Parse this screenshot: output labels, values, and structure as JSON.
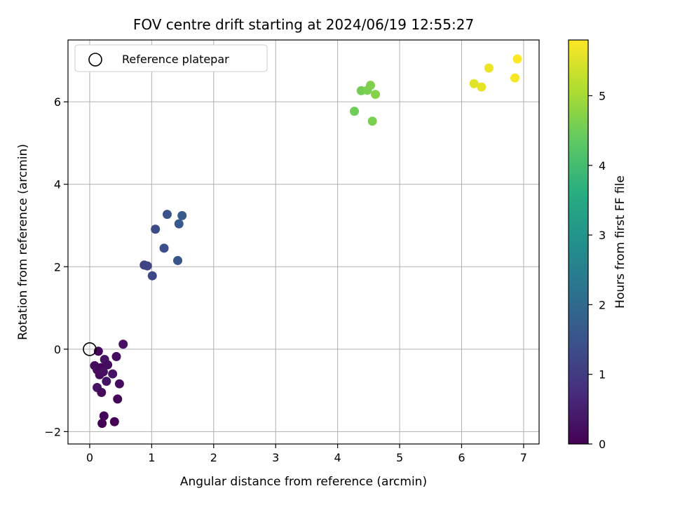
{
  "chart_data": {
    "type": "scatter",
    "title": "FOV centre drift starting at 2024/06/19 12:55:27",
    "xlabel": "Angular distance from reference (arcmin)",
    "ylabel": "Rotation from reference (arcmin)",
    "xlim": [
      -0.35,
      7.25
    ],
    "ylim": [
      -2.3,
      7.5
    ],
    "xticks": [
      0,
      1,
      2,
      3,
      4,
      5,
      6,
      7
    ],
    "yticks": [
      -2,
      0,
      2,
      4,
      6
    ],
    "grid": true,
    "legend": {
      "placement": "top-left",
      "entries": [
        "Reference platepar"
      ]
    },
    "reference_point": {
      "x": 0,
      "y": 0,
      "label": "Reference platepar"
    },
    "colorbar": {
      "label": "Hours from first FF file",
      "colormap": "viridis",
      "range": [
        0,
        5.8
      ],
      "ticks": [
        0,
        1,
        2,
        3,
        4,
        5
      ]
    },
    "points": [
      {
        "x": 0.14,
        "y": -0.05,
        "c": 0.1
      },
      {
        "x": 0.54,
        "y": 0.12,
        "c": 0.25
      },
      {
        "x": 0.08,
        "y": -0.4,
        "c": 0.15
      },
      {
        "x": 0.12,
        "y": -0.5,
        "c": 0.2
      },
      {
        "x": 0.18,
        "y": -0.45,
        "c": 0.1
      },
      {
        "x": 0.24,
        "y": -0.25,
        "c": 0.3
      },
      {
        "x": 0.29,
        "y": -0.38,
        "c": 0.2
      },
      {
        "x": 0.16,
        "y": -0.62,
        "c": 0.15
      },
      {
        "x": 0.22,
        "y": -0.55,
        "c": 0.25
      },
      {
        "x": 0.37,
        "y": -0.6,
        "c": 0.3
      },
      {
        "x": 0.43,
        "y": -0.18,
        "c": 0.2
      },
      {
        "x": 0.27,
        "y": -0.78,
        "c": 0.3
      },
      {
        "x": 0.12,
        "y": -0.93,
        "c": 0.3
      },
      {
        "x": 0.19,
        "y": -1.05,
        "c": 0.15
      },
      {
        "x": 0.48,
        "y": -0.84,
        "c": 0.2
      },
      {
        "x": 0.45,
        "y": -1.21,
        "c": 0.05
      },
      {
        "x": 0.23,
        "y": -1.62,
        "c": 0.05
      },
      {
        "x": 0.2,
        "y": -1.8,
        "c": 0.0
      },
      {
        "x": 0.4,
        "y": -1.76,
        "c": 0.0
      },
      {
        "x": 0.88,
        "y": 2.04,
        "c": 1.1
      },
      {
        "x": 0.93,
        "y": 2.02,
        "c": 1.15
      },
      {
        "x": 1.01,
        "y": 1.78,
        "c": 1.25
      },
      {
        "x": 1.06,
        "y": 2.91,
        "c": 1.3
      },
      {
        "x": 1.2,
        "y": 2.45,
        "c": 1.4
      },
      {
        "x": 1.25,
        "y": 3.27,
        "c": 1.5
      },
      {
        "x": 1.42,
        "y": 2.15,
        "c": 1.55
      },
      {
        "x": 1.44,
        "y": 3.04,
        "c": 1.6
      },
      {
        "x": 1.49,
        "y": 3.24,
        "c": 1.65
      },
      {
        "x": 4.27,
        "y": 5.77,
        "c": 4.5
      },
      {
        "x": 4.38,
        "y": 6.27,
        "c": 4.55
      },
      {
        "x": 4.48,
        "y": 6.28,
        "c": 4.6
      },
      {
        "x": 4.53,
        "y": 6.4,
        "c": 4.65
      },
      {
        "x": 4.61,
        "y": 6.18,
        "c": 4.7
      },
      {
        "x": 4.56,
        "y": 5.53,
        "c": 4.6
      },
      {
        "x": 6.2,
        "y": 6.44,
        "c": 5.55
      },
      {
        "x": 6.32,
        "y": 6.36,
        "c": 5.6
      },
      {
        "x": 6.44,
        "y": 6.82,
        "c": 5.65
      },
      {
        "x": 6.86,
        "y": 6.58,
        "c": 5.75
      },
      {
        "x": 6.9,
        "y": 7.04,
        "c": 5.8
      }
    ]
  }
}
